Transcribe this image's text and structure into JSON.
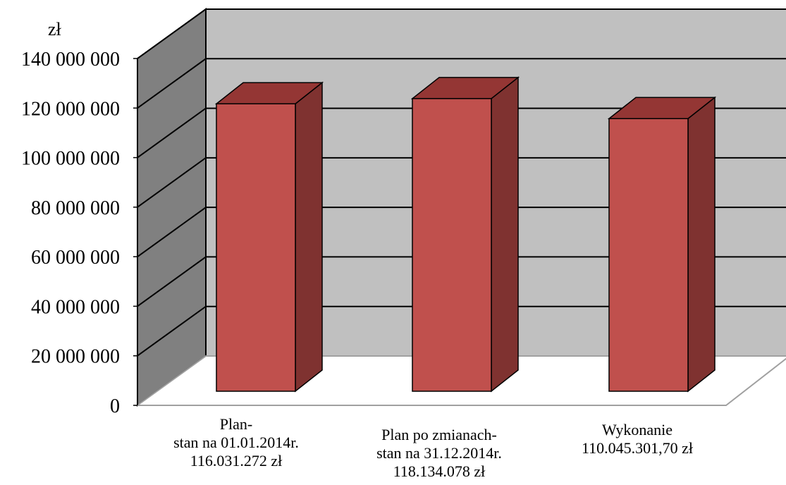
{
  "chart_data": {
    "type": "bar",
    "unit_label": "zł",
    "categories": [
      [
        "Plan-",
        "stan na 01.01.2014r.",
        "116.031.272 zł"
      ],
      [
        "Plan po zmianach-",
        "stan na 31.12.2014r.",
        "118.134.078 zł"
      ],
      [
        "Wykonanie",
        "110.045.301,70 zł"
      ]
    ],
    "values": [
      116031272,
      118134078,
      110045301.7
    ],
    "ylim": [
      0,
      140000000
    ],
    "yticks": [
      0,
      20000000,
      40000000,
      60000000,
      80000000,
      100000000,
      120000000,
      140000000
    ],
    "ytick_labels": [
      "0",
      "20 000 000",
      "40 000 000",
      "60 000 000",
      "80 000 000",
      "100 000 000",
      "120 000 000",
      "140 000 000"
    ],
    "grid": true,
    "style": "3d-column",
    "colors": {
      "bar_front": "#C0504D",
      "bar_top": "#943634",
      "bar_side": "#7F3230",
      "back_wall": "#C0C0C0",
      "side_wall": "#808080",
      "floor": "#ffffff"
    }
  }
}
